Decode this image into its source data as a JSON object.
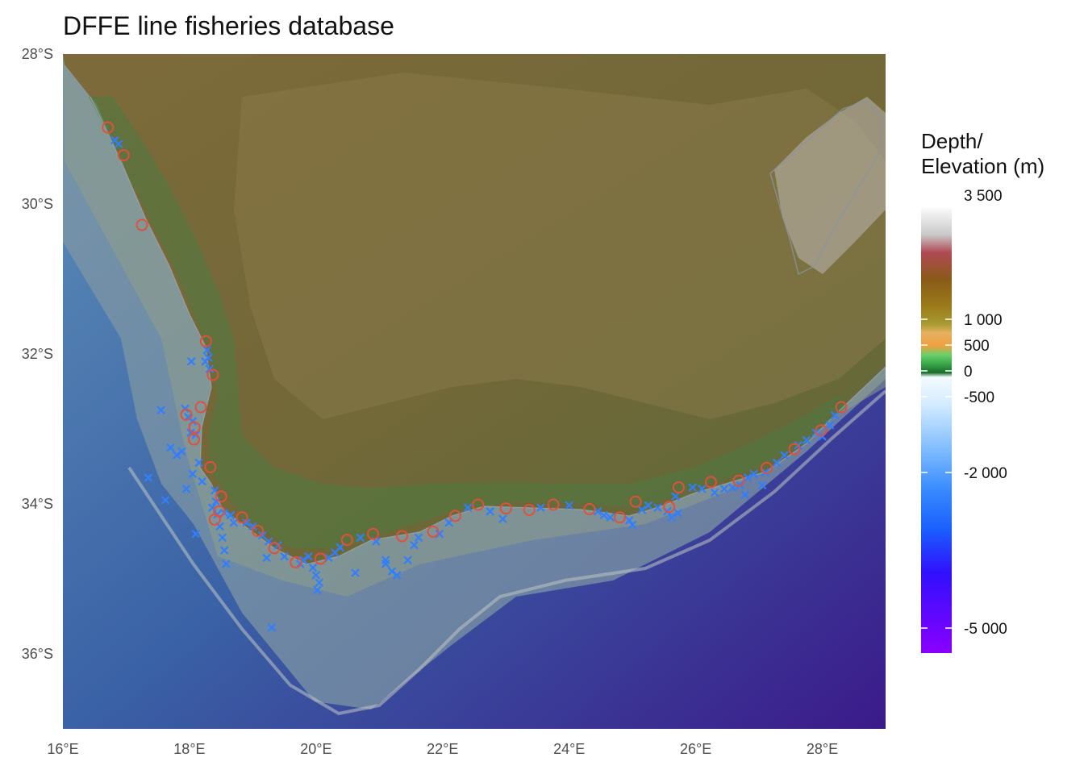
{
  "title": "DFFE line fisheries database",
  "axes": {
    "lon_ticks": [
      {
        "value": 16,
        "label": "16°E"
      },
      {
        "value": 18,
        "label": "18°E"
      },
      {
        "value": 20,
        "label": "20°E"
      },
      {
        "value": 22,
        "label": "22°E"
      },
      {
        "value": 24,
        "label": "24°E"
      },
      {
        "value": 26,
        "label": "26°E"
      },
      {
        "value": 28,
        "label": "28°E"
      }
    ],
    "lat_ticks": [
      {
        "value": -28,
        "label": "28°S"
      },
      {
        "value": -30,
        "label": "30°S"
      },
      {
        "value": -32,
        "label": "32°S"
      },
      {
        "value": -34,
        "label": "34°S"
      },
      {
        "value": -36,
        "label": "36°S"
      }
    ],
    "lon_range": [
      16,
      29
    ],
    "lat_range": [
      -37,
      -28
    ]
  },
  "legend": {
    "title_line1": "Depth/",
    "title_line2": "Elevation (m)",
    "labels": [
      {
        "value": 3500,
        "label": "3 500"
      },
      {
        "value": 1000,
        "label": "1 000"
      },
      {
        "value": 500,
        "label": "500"
      },
      {
        "value": 0,
        "label": "0"
      },
      {
        "value": -500,
        "label": "-500"
      },
      {
        "value": -2000,
        "label": "-2 000"
      },
      {
        "value": -5000,
        "label": "-5 000"
      }
    ]
  },
  "colors": {
    "deep_ocean": "#3b1a8a",
    "shallow_ocean": "#8fb0c8",
    "land": "#6e6a3e",
    "circle_marker": "#e0503c",
    "cross_marker": "#2f7fff"
  },
  "chart_data": {
    "type": "map",
    "circles": [
      [
        16.71,
        -28.98
      ],
      [
        16.96,
        -29.35
      ],
      [
        17.25,
        -30.28
      ],
      [
        18.26,
        -31.83
      ],
      [
        18.37,
        -32.28
      ],
      [
        18.18,
        -32.71
      ],
      [
        17.95,
        -32.81
      ],
      [
        18.08,
        -32.98
      ],
      [
        18.07,
        -33.14
      ],
      [
        18.33,
        -33.51
      ],
      [
        18.5,
        -33.9
      ],
      [
        18.47,
        -34.1
      ],
      [
        18.4,
        -34.21
      ],
      [
        18.83,
        -34.18
      ],
      [
        19.08,
        -34.36
      ],
      [
        19.34,
        -34.59
      ],
      [
        19.68,
        -34.78
      ],
      [
        20.07,
        -34.73
      ],
      [
        20.49,
        -34.48
      ],
      [
        20.9,
        -34.4
      ],
      [
        21.36,
        -34.43
      ],
      [
        21.85,
        -34.37
      ],
      [
        22.2,
        -34.16
      ],
      [
        22.56,
        -34.01
      ],
      [
        23.0,
        -34.06
      ],
      [
        23.37,
        -34.08
      ],
      [
        23.75,
        -34.01
      ],
      [
        24.32,
        -34.07
      ],
      [
        24.8,
        -34.18
      ],
      [
        25.05,
        -33.97
      ],
      [
        25.58,
        -34.04
      ],
      [
        25.73,
        -33.78
      ],
      [
        26.24,
        -33.71
      ],
      [
        26.68,
        -33.69
      ],
      [
        27.12,
        -33.52
      ],
      [
        27.56,
        -33.27
      ],
      [
        27.98,
        -33.02
      ],
      [
        28.3,
        -32.71
      ]
    ],
    "crosses": [
      [
        16.82,
        -29.15
      ],
      [
        16.88,
        -29.2
      ],
      [
        18.28,
        -31.95
      ],
      [
        18.3,
        -32.05
      ],
      [
        18.25,
        -32.1
      ],
      [
        18.32,
        -32.2
      ],
      [
        18.03,
        -32.1
      ],
      [
        17.93,
        -32.73
      ],
      [
        17.98,
        -32.84
      ],
      [
        18.05,
        -32.9
      ],
      [
        18.02,
        -33.05
      ],
      [
        18.1,
        -33.08
      ],
      [
        17.88,
        -33.3
      ],
      [
        17.8,
        -33.35
      ],
      [
        18.15,
        -33.45
      ],
      [
        18.05,
        -33.6
      ],
      [
        17.95,
        -33.8
      ],
      [
        18.4,
        -33.82
      ],
      [
        18.42,
        -33.97
      ],
      [
        18.36,
        -34.05
      ],
      [
        18.44,
        -34.14
      ],
      [
        18.55,
        -34.12
      ],
      [
        18.65,
        -34.15
      ],
      [
        18.7,
        -34.25
      ],
      [
        18.48,
        -34.3
      ],
      [
        18.52,
        -34.45
      ],
      [
        18.55,
        -34.62
      ],
      [
        18.58,
        -34.8
      ],
      [
        18.9,
        -34.25
      ],
      [
        19.0,
        -34.3
      ],
      [
        19.15,
        -34.42
      ],
      [
        19.25,
        -34.5
      ],
      [
        19.4,
        -34.55
      ],
      [
        19.22,
        -34.72
      ],
      [
        19.5,
        -34.7
      ],
      [
        19.8,
        -34.75
      ],
      [
        19.95,
        -34.85
      ],
      [
        20.0,
        -34.95
      ],
      [
        20.05,
        -35.05
      ],
      [
        20.02,
        -35.15
      ],
      [
        20.2,
        -34.72
      ],
      [
        20.3,
        -34.65
      ],
      [
        20.38,
        -34.58
      ],
      [
        20.7,
        -34.45
      ],
      [
        20.95,
        -34.5
      ],
      [
        21.1,
        -34.75
      ],
      [
        21.2,
        -34.9
      ],
      [
        21.28,
        -34.95
      ],
      [
        21.45,
        -34.75
      ],
      [
        21.55,
        -34.55
      ],
      [
        21.62,
        -34.45
      ],
      [
        21.95,
        -34.4
      ],
      [
        22.1,
        -34.25
      ],
      [
        22.4,
        -34.05
      ],
      [
        22.75,
        -34.1
      ],
      [
        22.95,
        -34.2
      ],
      [
        23.55,
        -34.05
      ],
      [
        24.0,
        -34.02
      ],
      [
        24.45,
        -34.1
      ],
      [
        24.55,
        -34.15
      ],
      [
        24.65,
        -34.18
      ],
      [
        24.95,
        -34.22
      ],
      [
        25.0,
        -34.28
      ],
      [
        25.15,
        -34.08
      ],
      [
        25.25,
        -34.02
      ],
      [
        25.4,
        -34.05
      ],
      [
        25.55,
        -34.1
      ],
      [
        25.62,
        -34.18
      ],
      [
        25.72,
        -34.12
      ],
      [
        25.68,
        -33.9
      ],
      [
        25.95,
        -33.78
      ],
      [
        26.1,
        -33.8
      ],
      [
        26.3,
        -33.85
      ],
      [
        26.45,
        -33.8
      ],
      [
        26.58,
        -33.78
      ],
      [
        26.7,
        -33.75
      ],
      [
        26.82,
        -33.65
      ],
      [
        26.92,
        -33.6
      ],
      [
        26.78,
        -33.88
      ],
      [
        27.05,
        -33.75
      ],
      [
        27.1,
        -33.58
      ],
      [
        27.28,
        -33.45
      ],
      [
        27.4,
        -33.35
      ],
      [
        27.62,
        -33.22
      ],
      [
        27.75,
        -33.15
      ],
      [
        27.9,
        -33.05
      ],
      [
        28.0,
        -33.1
      ],
      [
        28.12,
        -32.95
      ],
      [
        28.2,
        -32.82
      ],
      [
        17.55,
        -32.75
      ],
      [
        17.7,
        -33.25
      ],
      [
        17.35,
        -33.65
      ],
      [
        17.62,
        -33.95
      ],
      [
        18.1,
        -34.4
      ],
      [
        19.3,
        -35.65
      ],
      [
        18.2,
        -33.7
      ],
      [
        19.75,
        -34.8
      ],
      [
        20.62,
        -34.92
      ],
      [
        21.1,
        -34.8
      ],
      [
        19.88,
        -34.7
      ]
    ]
  }
}
